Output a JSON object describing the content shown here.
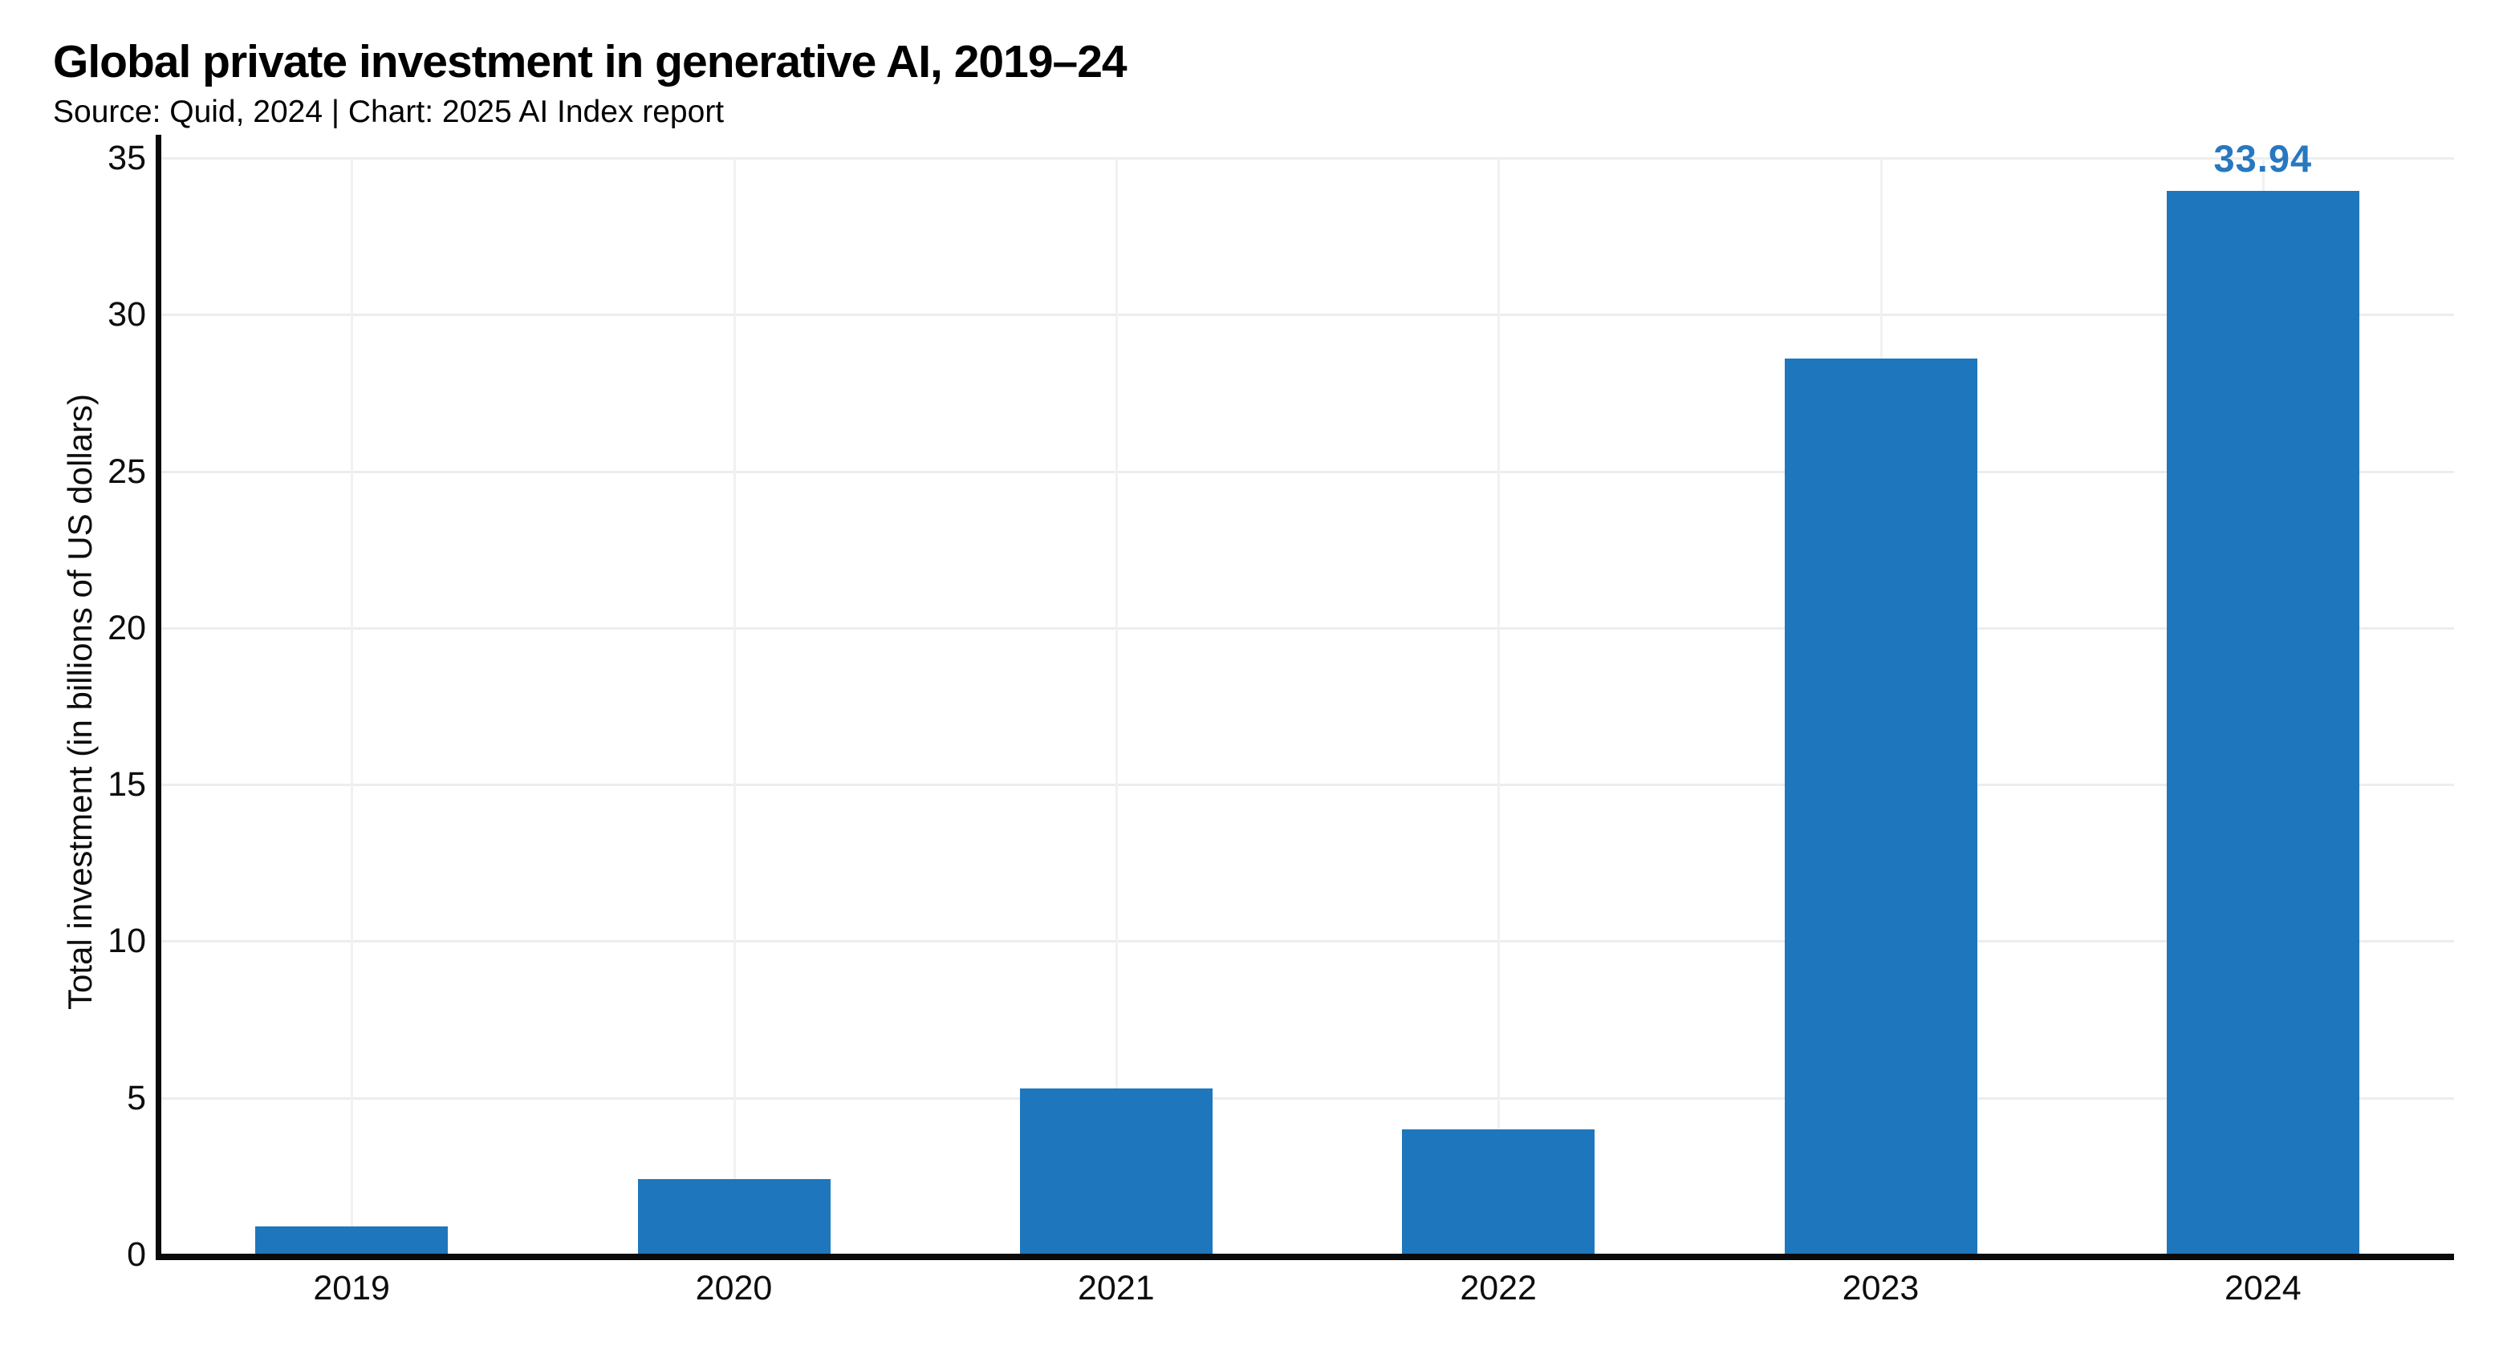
{
  "page": {
    "title": "Global private investment in generative AI, 2019–24",
    "subtitle": "Source: Quid, 2024 | Chart: 2025 AI Index report"
  },
  "chart_data": {
    "type": "bar",
    "title": "Global private investment in generative AI, 2019–24",
    "categories": [
      "2019",
      "2020",
      "2021",
      "2022",
      "2023",
      "2024"
    ],
    "values": [
      0.9,
      2.4,
      5.3,
      4.0,
      28.6,
      33.94
    ],
    "bar_labels": [
      "",
      "",
      "",
      "",
      "",
      "33.94"
    ],
    "xlabel": "",
    "ylabel": "Total investment (in billions of US dollars)",
    "ylim": [
      0,
      35
    ],
    "yticks": [
      0,
      5,
      10,
      15,
      20,
      25,
      30,
      35
    ],
    "grid": true,
    "legend": false,
    "colors": {
      "bar": "#1e77bc",
      "bar_label": "#2878c0",
      "gridline": "#ededed",
      "axis": "#0a0a0a",
      "text": "#0d0d0d"
    }
  }
}
